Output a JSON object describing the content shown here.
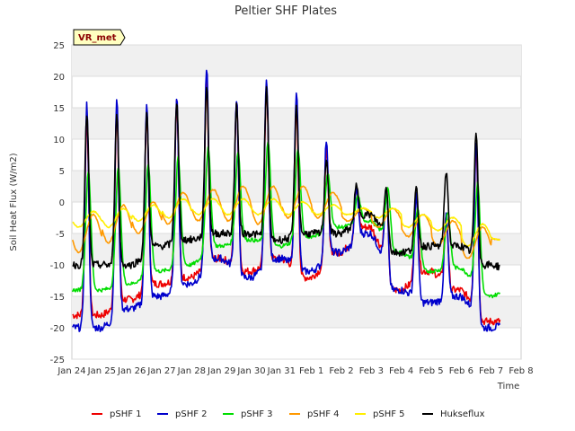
{
  "chart_data": {
    "type": "line",
    "title": "Peltier SHF Plates",
    "xlabel": "Time",
    "ylabel": "Soil Heat Flux (W/m2)",
    "ylim": [
      -25,
      25
    ],
    "xlim": [
      0,
      15
    ],
    "yticks": [
      -25,
      -20,
      -15,
      -10,
      -5,
      0,
      5,
      10,
      15,
      20,
      25
    ],
    "xticks": [
      {
        "x": 0,
        "label": "Jan 24"
      },
      {
        "x": 1,
        "label": "Jan 25"
      },
      {
        "x": 2,
        "label": "Jan 26"
      },
      {
        "x": 3,
        "label": "Jan 27"
      },
      {
        "x": 4,
        "label": "Jan 28"
      },
      {
        "x": 5,
        "label": "Jan 29"
      },
      {
        "x": 6,
        "label": "Jan 30"
      },
      {
        "x": 7,
        "label": "Jan 31"
      },
      {
        "x": 8,
        "label": "Feb 1"
      },
      {
        "x": 9,
        "label": "Feb 2"
      },
      {
        "x": 10,
        "label": "Feb 3"
      },
      {
        "x": 11,
        "label": "Feb 4"
      },
      {
        "x": 12,
        "label": "Feb 5"
      },
      {
        "x": 13,
        "label": "Feb 6"
      },
      {
        "x": 14,
        "label": "Feb 7"
      },
      {
        "x": 15,
        "label": "Feb 8"
      }
    ],
    "badge": "VR_met",
    "legend_position": "bottom",
    "days": [
      0,
      1,
      2,
      3,
      4,
      5,
      6,
      7,
      8,
      9,
      10,
      11,
      12,
      13,
      14
    ],
    "series": [
      {
        "name": "pSHF 1",
        "color": "#ee0000",
        "kind": "sharp",
        "peaks": [
          13.5,
          14.5,
          14,
          16,
          19,
          16,
          18.5,
          15,
          8,
          2,
          2,
          1,
          -2,
          9,
          -2
        ],
        "troughs": [
          -18,
          -15.5,
          -13,
          -12,
          -9,
          -11,
          -9,
          -12,
          -8,
          -4,
          -14,
          -11,
          -14,
          -19,
          -19
        ]
      },
      {
        "name": "pSHF 2",
        "color": "#0000cc",
        "kind": "sharp",
        "peaks": [
          15.5,
          16.5,
          16,
          17,
          21.5,
          16.5,
          20,
          18,
          10,
          2,
          2,
          1,
          -2,
          10,
          -2
        ],
        "troughs": [
          -20,
          -17,
          -15,
          -13,
          -9,
          -12,
          -9,
          -11,
          -8,
          -5,
          -14,
          -16,
          -15,
          -20,
          -19.5
        ]
      },
      {
        "name": "pSHF 3",
        "color": "#00dd00",
        "kind": "broad",
        "peaks": [
          5,
          5.5,
          6,
          7,
          8.5,
          8,
          9.5,
          8.5,
          4.5,
          1,
          2,
          -1,
          -1.5,
          3,
          -2
        ],
        "troughs": [
          -14,
          -13,
          -11,
          -10,
          -7,
          -6,
          -7,
          -5.5,
          -4,
          -3,
          -8,
          -11,
          -10.5,
          -15,
          -13.5
        ]
      },
      {
        "name": "pSHF 4",
        "color": "#ff9900",
        "kind": "smooth",
        "peaks": [
          -2,
          -0.5,
          0,
          1.5,
          2,
          2.5,
          2.5,
          2.5,
          1.5,
          -1,
          -1,
          -2,
          -3,
          -4,
          -5
        ],
        "troughs": [
          -8,
          -6.5,
          -5,
          -3.5,
          -3,
          -3,
          -3.5,
          -2.5,
          -2.5,
          -3,
          -4,
          -5.5,
          -7,
          -9,
          -6
        ]
      },
      {
        "name": "pSHF 5",
        "color": "#ffee00",
        "kind": "smooth",
        "peaks": [
          -1.5,
          -1,
          -0.5,
          0.5,
          0.5,
          0.5,
          0.5,
          0,
          -0.5,
          -1,
          -1,
          -2,
          -2.5,
          -3.5,
          -5
        ],
        "troughs": [
          -4,
          -4,
          -3,
          -2.5,
          -2,
          -2,
          -2,
          -2,
          -2,
          -2,
          -2.5,
          -4,
          -4.5,
          -7,
          -6
        ]
      },
      {
        "name": "Hukseflux",
        "color": "#000000",
        "kind": "sharp",
        "peaks": [
          14,
          14.5,
          14,
          16,
          18.5,
          15.5,
          18,
          15,
          7,
          2.5,
          2.5,
          2,
          5,
          11,
          -2
        ],
        "troughs": [
          -10,
          -10,
          -7,
          -6,
          -5,
          -5,
          -6,
          -5,
          -5,
          -2,
          -8,
          -7,
          -7,
          -10,
          -11
        ]
      }
    ]
  }
}
